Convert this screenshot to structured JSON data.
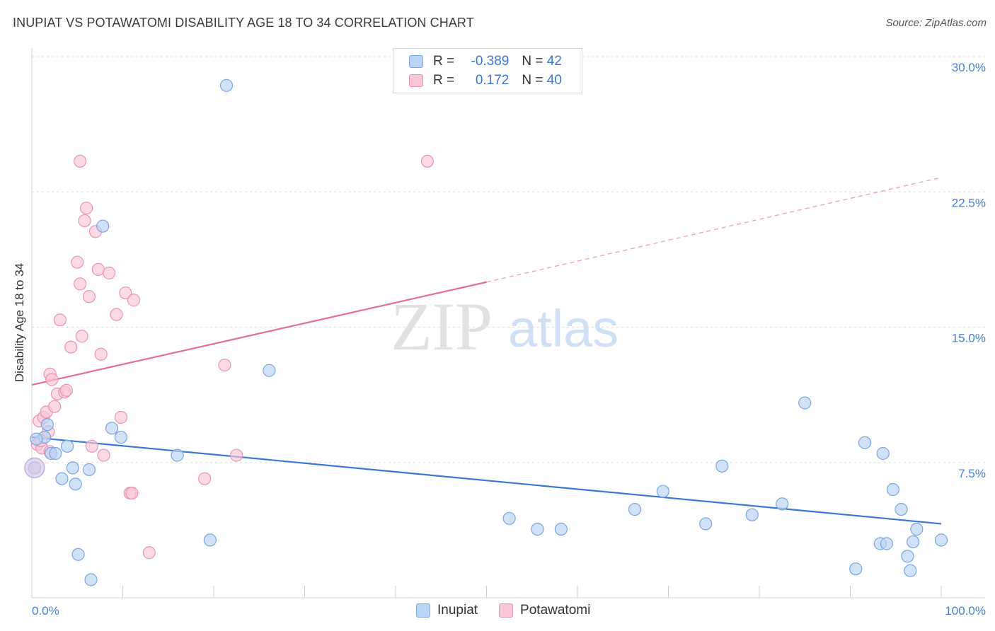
{
  "header": {
    "title": "INUPIAT VS POTAWATOMI DISABILITY AGE 18 TO 34 CORRELATION CHART",
    "source": "Source: ZipAtlas.com"
  },
  "legend": {
    "rows": [
      {
        "r_label": "R = ",
        "r_value": "-0.389",
        "n_label": "N = ",
        "n_value": "42",
        "color": "#b9d3f5"
      },
      {
        "r_label": "R = ",
        "r_value": "0.172",
        "n_label": "N = ",
        "n_value": "40",
        "color": "#f9c6d5"
      }
    ],
    "bottom": [
      "Inupiat",
      "Potawatomi"
    ]
  },
  "watermark": {
    "zip": "ZIP",
    "atlas": "atlas"
  },
  "chart_data": {
    "type": "scatter",
    "title": "INUPIAT VS POTAWATOMI DISABILITY AGE 18 TO 34 CORRELATION CHART",
    "xlabel": "",
    "ylabel": "Disability Age 18 to 34",
    "xlim": [
      0,
      100
    ],
    "ylim": [
      0,
      30
    ],
    "x_tick_labels": [
      "0.0%",
      "100.0%"
    ],
    "y_ticks": [
      7.5,
      15.0,
      22.5,
      30.0
    ],
    "y_tick_labels": [
      "7.5%",
      "15.0%",
      "22.5%",
      "30.0%"
    ],
    "grid": true,
    "series": [
      {
        "name": "Inupiat",
        "color": "#7aa6e0",
        "fill": "#b9d3f5",
        "R": -0.389,
        "N": 42,
        "trend": {
          "x": [
            0,
            100
          ],
          "y": [
            8.9,
            4.1
          ]
        },
        "points": [
          [
            1.4,
            8.9
          ],
          [
            1.7,
            9.6
          ],
          [
            2.1,
            8.0
          ],
          [
            2.6,
            8.0
          ],
          [
            3.3,
            6.6
          ],
          [
            3.9,
            8.4
          ],
          [
            4.5,
            7.2
          ],
          [
            4.8,
            6.3
          ],
          [
            5.1,
            2.4
          ],
          [
            6.3,
            7.1
          ],
          [
            6.5,
            1.0
          ],
          [
            7.8,
            20.6
          ],
          [
            8.8,
            9.4
          ],
          [
            9.8,
            8.9
          ],
          [
            16.0,
            7.9
          ],
          [
            19.6,
            3.2
          ],
          [
            21.4,
            28.4
          ],
          [
            26.1,
            12.6
          ],
          [
            52.5,
            4.4
          ],
          [
            55.6,
            3.8
          ],
          [
            58.2,
            3.8
          ],
          [
            66.3,
            4.9
          ],
          [
            69.4,
            5.9
          ],
          [
            74.1,
            4.1
          ],
          [
            75.9,
            7.3
          ],
          [
            79.2,
            4.6
          ],
          [
            82.5,
            5.2
          ],
          [
            85.0,
            10.8
          ],
          [
            90.6,
            1.6
          ],
          [
            91.6,
            8.6
          ],
          [
            93.3,
            3.0
          ],
          [
            93.6,
            8.0
          ],
          [
            94.0,
            3.0
          ],
          [
            94.7,
            6.0
          ],
          [
            95.6,
            4.9
          ],
          [
            96.3,
            2.3
          ],
          [
            96.6,
            1.5
          ],
          [
            96.9,
            3.1
          ],
          [
            97.3,
            3.8
          ],
          [
            100.0,
            3.2
          ],
          [
            0.3,
            7.2
          ],
          [
            0.5,
            8.8
          ]
        ]
      },
      {
        "name": "Potawatomi",
        "color": "#ec93ae",
        "fill": "#f9c6d5",
        "R": 0.172,
        "N": 40,
        "trend_solid": {
          "x": [
            0,
            50
          ],
          "y": [
            11.8,
            17.5
          ]
        },
        "trend_dashed": {
          "x": [
            50,
            100
          ],
          "y": [
            17.5,
            23.3
          ]
        },
        "points": [
          [
            0.6,
            8.5
          ],
          [
            0.8,
            9.8
          ],
          [
            1.1,
            8.3
          ],
          [
            1.3,
            10.0
          ],
          [
            1.6,
            10.3
          ],
          [
            1.8,
            9.2
          ],
          [
            2.0,
            12.4
          ],
          [
            2.2,
            12.1
          ],
          [
            2.5,
            10.6
          ],
          [
            2.8,
            11.3
          ],
          [
            3.1,
            15.4
          ],
          [
            3.6,
            11.4
          ],
          [
            3.8,
            11.5
          ],
          [
            4.3,
            13.9
          ],
          [
            5.0,
            18.6
          ],
          [
            5.3,
            17.4
          ],
          [
            5.5,
            14.5
          ],
          [
            5.3,
            24.2
          ],
          [
            5.8,
            20.9
          ],
          [
            6.0,
            21.6
          ],
          [
            6.3,
            16.7
          ],
          [
            6.6,
            8.4
          ],
          [
            7.0,
            20.3
          ],
          [
            7.3,
            18.2
          ],
          [
            7.6,
            13.5
          ],
          [
            7.9,
            7.9
          ],
          [
            8.5,
            18.0
          ],
          [
            9.3,
            15.7
          ],
          [
            9.8,
            10.0
          ],
          [
            10.3,
            16.9
          ],
          [
            10.8,
            5.8
          ],
          [
            11.0,
            5.8
          ],
          [
            11.2,
            16.5
          ],
          [
            12.9,
            2.5
          ],
          [
            19.0,
            6.6
          ],
          [
            21.2,
            12.9
          ],
          [
            22.5,
            7.9
          ],
          [
            43.5,
            24.2
          ],
          [
            2.0,
            8.1
          ],
          [
            1.0,
            8.7
          ]
        ]
      }
    ]
  }
}
